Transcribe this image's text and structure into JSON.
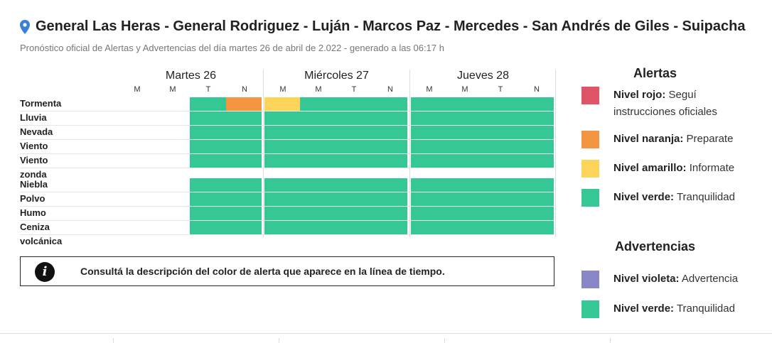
{
  "header": {
    "title": "General Las Heras - General Rodriguez - Luján - Marcos Paz - Mercedes - San Andrés de Giles - Suipacha",
    "subtitle": "Pronóstico oficial de Alertas y Advertencias del día martes 26 de abril de 2.022 - generado a las 06:17 h",
    "icon": "location-pin-icon"
  },
  "colors": {
    "green": "#35c794",
    "orange": "#f39541",
    "yellow": "#fcd45a",
    "red": "#e05468",
    "violet": "#8a87c6",
    "pin": "#3a7fd8"
  },
  "timeline": {
    "days": [
      {
        "label": "Martes 26",
        "periods": [
          "M",
          "M",
          "T",
          "N"
        ]
      },
      {
        "label": "Miércoles 27",
        "periods": [
          "M",
          "M",
          "T",
          "N"
        ]
      },
      {
        "label": "Jueves 28",
        "periods": [
          "M",
          "M",
          "T",
          "N"
        ]
      }
    ],
    "rows": [
      {
        "label": "Tormenta",
        "levels": [
          "none",
          "none",
          "green",
          "orange",
          "yellow",
          "green",
          "green",
          "green",
          "green",
          "green",
          "green",
          "green"
        ]
      },
      {
        "label": "Lluvia",
        "levels": [
          "none",
          "none",
          "green",
          "green",
          "green",
          "green",
          "green",
          "green",
          "green",
          "green",
          "green",
          "green"
        ]
      },
      {
        "label": "Nevada",
        "levels": [
          "none",
          "none",
          "green",
          "green",
          "green",
          "green",
          "green",
          "green",
          "green",
          "green",
          "green",
          "green"
        ]
      },
      {
        "label": "Viento",
        "levels": [
          "none",
          "none",
          "green",
          "green",
          "green",
          "green",
          "green",
          "green",
          "green",
          "green",
          "green",
          "green"
        ]
      },
      {
        "label": "Viento zonda",
        "levels": [
          "none",
          "none",
          "green",
          "green",
          "green",
          "green",
          "green",
          "green",
          "green",
          "green",
          "green",
          "green"
        ]
      },
      {
        "label": "Niebla",
        "levels": [
          "none",
          "none",
          "green",
          "green",
          "green",
          "green",
          "green",
          "green",
          "green",
          "green",
          "green",
          "green"
        ]
      },
      {
        "label": "Polvo",
        "levels": [
          "none",
          "none",
          "green",
          "green",
          "green",
          "green",
          "green",
          "green",
          "green",
          "green",
          "green",
          "green"
        ]
      },
      {
        "label": "Humo",
        "levels": [
          "none",
          "none",
          "green",
          "green",
          "green",
          "green",
          "green",
          "green",
          "green",
          "green",
          "green",
          "green"
        ]
      },
      {
        "label": "Ceniza volcánica",
        "levels": [
          "none",
          "none",
          "green",
          "green",
          "green",
          "green",
          "green",
          "green",
          "green",
          "green",
          "green",
          "green"
        ]
      }
    ]
  },
  "info": {
    "icon": "info-icon",
    "glyph": "i",
    "text": "Consultá la descripción del color de alerta que aparece en la línea de tiempo."
  },
  "legend": {
    "alerts_title": "Alertas",
    "alerts": [
      {
        "color": "red",
        "name": "Nivel rojo:",
        "desc": "Seguí instrucciones oficiales"
      },
      {
        "color": "orange",
        "name": "Nivel naranja:",
        "desc": "Preparate"
      },
      {
        "color": "yellow",
        "name": "Nivel amarillo:",
        "desc": "Informate"
      },
      {
        "color": "green",
        "name": "Nivel verde:",
        "desc": "Tranquilidad"
      }
    ],
    "warnings_title": "Advertencias",
    "warnings": [
      {
        "color": "violet",
        "name": "Nivel violeta:",
        "desc": "Advertencia"
      },
      {
        "color": "green",
        "name": "Nivel verde:",
        "desc": "Tranquilidad"
      }
    ]
  }
}
